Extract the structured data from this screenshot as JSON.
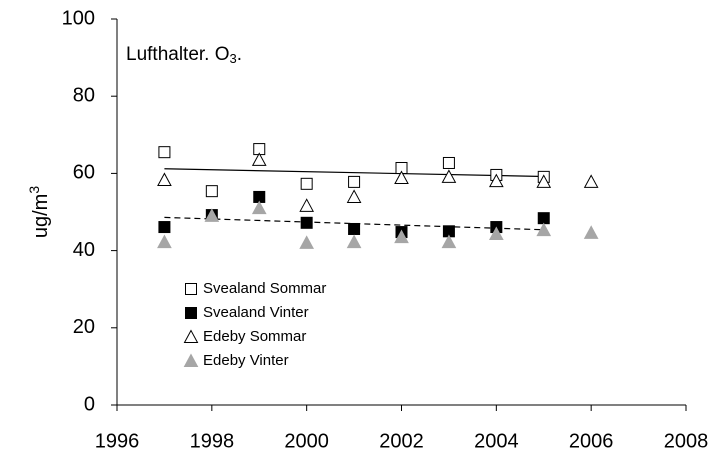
{
  "chart_data": {
    "type": "scatter",
    "title": "Lufthalter. O",
    "title_sub": "3",
    "title_end": ".",
    "y_label": "ug/m",
    "y_label_sup": "3",
    "xlim": [
      1996,
      2008
    ],
    "xticks": [
      1996,
      1998,
      2000,
      2002,
      2004,
      2006,
      2008
    ],
    "ylim": [
      0,
      100
    ],
    "yticks": [
      0,
      20,
      40,
      60,
      80,
      100
    ],
    "legend": "lower-left",
    "series": [
      {
        "name": "Svealand Sommar",
        "marker": "square",
        "color": "#ffffff",
        "stroke": "#000000",
        "x": [
          1997,
          1998,
          1999,
          2000,
          2001,
          2002,
          2003,
          2004,
          2005
        ],
        "values": [
          65.5,
          55.4,
          66.3,
          57.3,
          57.8,
          61.4,
          62.7,
          59.6,
          59.1
        ]
      },
      {
        "name": "Svealand Vinter",
        "marker": "square",
        "color": "#000000",
        "stroke": "#000000",
        "x": [
          1997,
          1998,
          1999,
          2000,
          2001,
          2002,
          2003,
          2004,
          2005
        ],
        "values": [
          46.1,
          49.2,
          53.9,
          47.2,
          45.6,
          44.8,
          45,
          46.1,
          48.4
        ]
      },
      {
        "name": "Edeby Sommar",
        "marker": "triangle",
        "color": "#ffffff",
        "stroke": "#000000",
        "x": [
          1997,
          1999,
          2000,
          2001,
          2002,
          2003,
          2004,
          2005,
          2006
        ],
        "values": [
          58.3,
          63.5,
          51.6,
          53.9,
          58.8,
          59.1,
          58,
          57.8,
          57.8
        ]
      },
      {
        "name": "Edeby Vinter",
        "marker": "triangle",
        "color": "#a6a6a6",
        "stroke": "#a6a6a6",
        "x": [
          1997,
          1998,
          1999,
          2000,
          2001,
          2002,
          2003,
          2004,
          2005,
          2006
        ],
        "values": [
          42.2,
          49,
          51,
          42,
          42.2,
          43.5,
          42.2,
          44.3,
          45.3,
          44.6
        ]
      }
    ],
    "trendlines": [
      {
        "x": [
          1997,
          2005
        ],
        "values": [
          61.2,
          59.2
        ],
        "dash": "none"
      },
      {
        "x": [
          1997,
          2005
        ],
        "values": [
          48.6,
          45.4
        ],
        "dash": "6,4"
      }
    ]
  }
}
